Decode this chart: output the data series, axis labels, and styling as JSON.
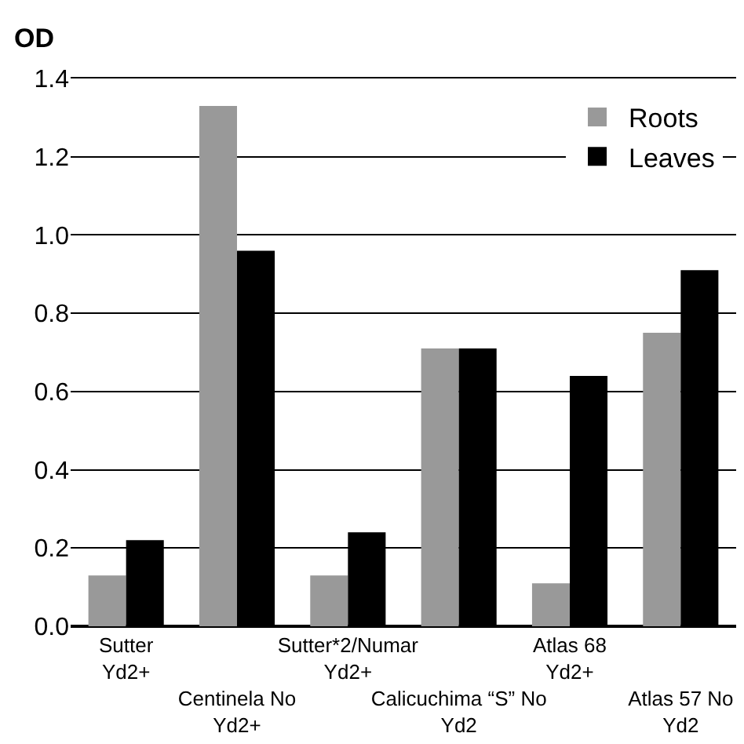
{
  "chart_data": {
    "type": "bar",
    "ylabel": "OD",
    "categories": [
      "Sutter Yd2+",
      "Centinela No Yd2+",
      "Sutter*2/Numar Yd2+",
      "Calicuchima “S” No Yd2",
      "Atlas 68 Yd2+",
      "Atlas 57 No Yd2"
    ],
    "series": [
      {
        "name": "Roots",
        "color": "#999999",
        "values": [
          0.13,
          1.33,
          0.13,
          0.71,
          0.11,
          0.75
        ]
      },
      {
        "name": "Leaves",
        "color": "#000000",
        "values": [
          0.22,
          0.96,
          0.24,
          0.71,
          0.64,
          0.91
        ]
      }
    ],
    "ylim": [
      0,
      1.4
    ],
    "yticks": [
      {
        "value": 0,
        "label": "0.0"
      },
      0.2,
      0.4,
      0.6,
      0.8,
      {
        "value": 1,
        "label": "1.0"
      },
      1.2,
      1.4
    ],
    "grid": "y",
    "legend": "top right"
  }
}
